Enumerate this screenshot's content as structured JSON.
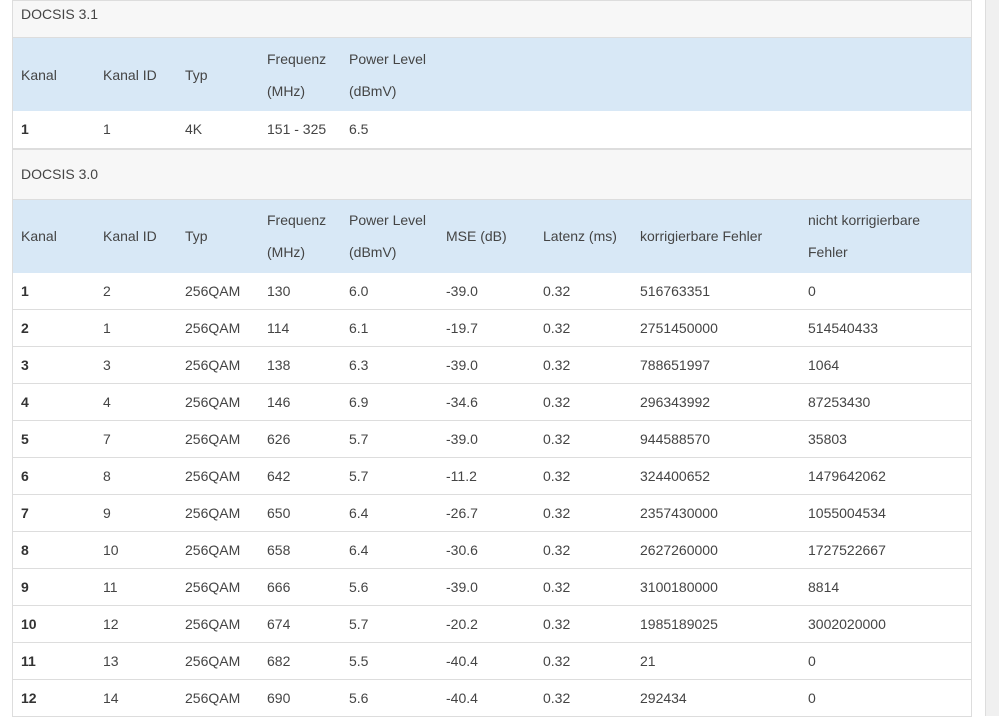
{
  "sections": [
    {
      "title": "DOCSIS 3.1",
      "headers": [
        "Kanal",
        "Kanal ID",
        "Typ",
        "Frequenz (MHz)",
        "Power Level (dBmV)"
      ],
      "rows": [
        [
          "1",
          "1",
          "4K",
          "151 - 325",
          "6.5"
        ]
      ]
    },
    {
      "title": "DOCSIS 3.0",
      "headers": [
        "Kanal",
        "Kanal ID",
        "Typ",
        "Frequenz (MHz)",
        "Power Level (dBmV)",
        "MSE (dB)",
        "Latenz (ms)",
        "korrigierbare Fehler",
        "nicht korrigierbare Fehler"
      ],
      "rows": [
        [
          "1",
          "2",
          "256QAM",
          "130",
          "6.0",
          "-39.0",
          "0.32",
          "516763351",
          "0"
        ],
        [
          "2",
          "1",
          "256QAM",
          "114",
          "6.1",
          "-19.7",
          "0.32",
          "2751450000",
          "514540433"
        ],
        [
          "3",
          "3",
          "256QAM",
          "138",
          "6.3",
          "-39.0",
          "0.32",
          "788651997",
          "1064"
        ],
        [
          "4",
          "4",
          "256QAM",
          "146",
          "6.9",
          "-34.6",
          "0.32",
          "296343992",
          "87253430"
        ],
        [
          "5",
          "7",
          "256QAM",
          "626",
          "5.7",
          "-39.0",
          "0.32",
          "944588570",
          "35803"
        ],
        [
          "6",
          "8",
          "256QAM",
          "642",
          "5.7",
          "-11.2",
          "0.32",
          "324400652",
          "1479642062"
        ],
        [
          "7",
          "9",
          "256QAM",
          "650",
          "6.4",
          "-26.7",
          "0.32",
          "2357430000",
          "1055004534"
        ],
        [
          "8",
          "10",
          "256QAM",
          "658",
          "6.4",
          "-30.6",
          "0.32",
          "2627260000",
          "1727522667"
        ],
        [
          "9",
          "11",
          "256QAM",
          "666",
          "5.6",
          "-39.0",
          "0.32",
          "3100180000",
          "8814"
        ],
        [
          "10",
          "12",
          "256QAM",
          "674",
          "5.7",
          "-20.2",
          "0.32",
          "1985189025",
          "3002020000"
        ],
        [
          "11",
          "13",
          "256QAM",
          "682",
          "5.5",
          "-40.4",
          "0.32",
          "21",
          "0"
        ],
        [
          "12",
          "14",
          "256QAM",
          "690",
          "5.6",
          "-40.4",
          "0.32",
          "292434",
          "0"
        ]
      ]
    }
  ]
}
